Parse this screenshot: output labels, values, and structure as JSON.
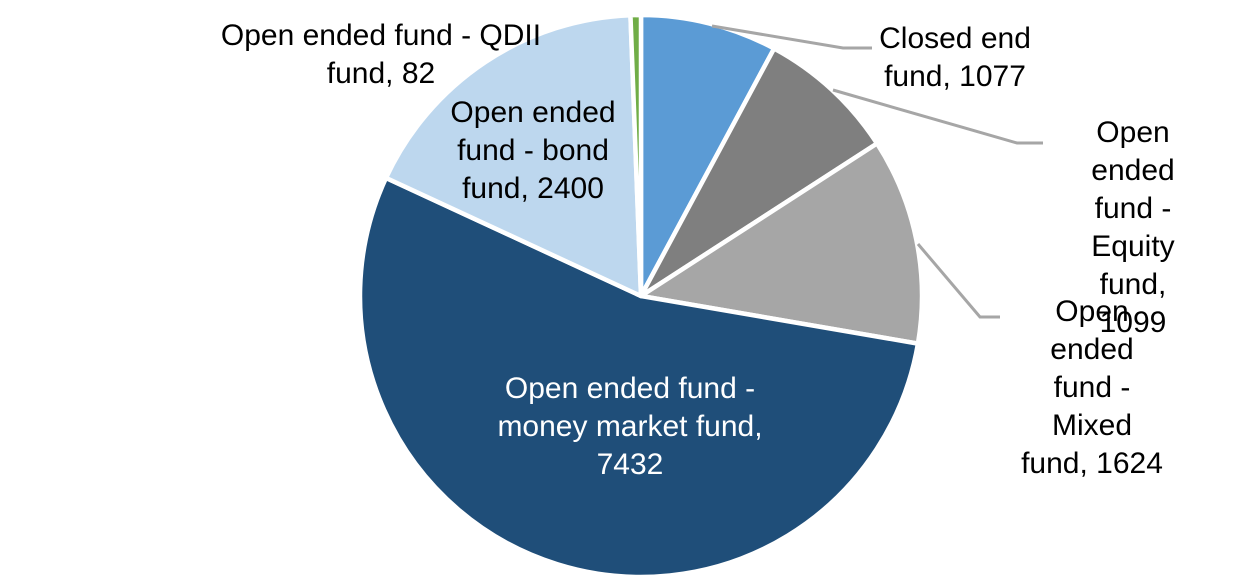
{
  "chart_data": {
    "type": "pie",
    "title": "",
    "legend": "none",
    "start_angle_deg": 0,
    "direction": "clockwise",
    "total": 13714,
    "data_label_format": "{category}, {value}",
    "slice_border_color": "#FFFFFF",
    "leader_line_color": "#A6A6A6",
    "slices": [
      {
        "label": "Closed end fund",
        "value": 1077,
        "color": "#5B9BD5"
      },
      {
        "label": "Open ended fund - Equity fund",
        "value": 1099,
        "color": "#7F7F7F"
      },
      {
        "label": "Open ended fund - Mixed fund",
        "value": 1624,
        "color": "#A6A6A6"
      },
      {
        "label": "Open ended fund - money market fund",
        "value": 7432,
        "color": "#1F4E79"
      },
      {
        "label": "Open ended fund - bond fund",
        "value": 2400,
        "color": "#BDD7EE"
      },
      {
        "label": "Open ended fund - QDII fund",
        "value": 82,
        "color": "#70AD47"
      }
    ]
  },
  "labels": [
    {
      "id": "qdii",
      "text": "Open ended fund - QDII\nfund, 82",
      "color": "#000000"
    },
    {
      "id": "bond",
      "text": "Open ended\nfund - bond\nfund, 2400",
      "color": "#000000"
    },
    {
      "id": "money",
      "text": "Open ended fund -\nmoney market fund,\n7432",
      "color": "#FFFFFF"
    },
    {
      "id": "closed",
      "text": "Closed end\nfund, 1077",
      "color": "#000000"
    },
    {
      "id": "equity",
      "text": "Open ended\nfund - Equity\nfund, 1099",
      "color": "#000000"
    },
    {
      "id": "mixed",
      "text": "Open ended\nfund - Mixed\nfund, 1624",
      "color": "#000000"
    }
  ]
}
